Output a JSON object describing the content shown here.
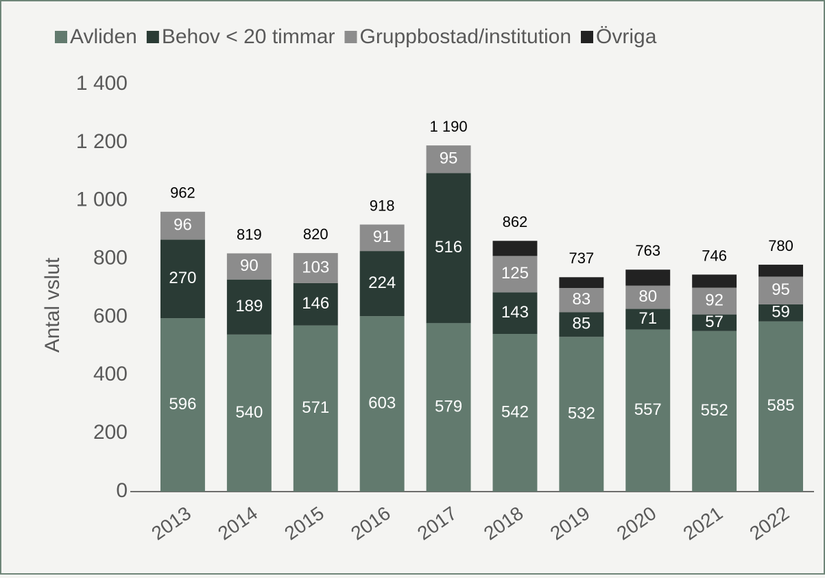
{
  "chart_data": {
    "type": "stacked_bar",
    "y_label": "Antal vslut",
    "categories": [
      "2013",
      "2014",
      "2015",
      "2016",
      "2017",
      "2018",
      "2019",
      "2020",
      "2021",
      "2022"
    ],
    "series": [
      {
        "name": "Avliden",
        "color": "#627a6e",
        "data_labels": true,
        "values": [
          596,
          540,
          571,
          603,
          579,
          542,
          532,
          557,
          552,
          585
        ]
      },
      {
        "name": "Behov < 20 timmar",
        "color": "#2a3b35",
        "data_labels": true,
        "values": [
          270,
          189,
          146,
          224,
          516,
          143,
          85,
          71,
          57,
          59
        ]
      },
      {
        "name": "Gruppbostad/institution",
        "color": "#8c8c8c",
        "data_labels": true,
        "values": [
          96,
          90,
          103,
          91,
          95,
          125,
          83,
          80,
          92,
          95
        ]
      },
      {
        "name": "Övriga",
        "color": "#222222",
        "data_labels": false,
        "values": [
          0,
          0,
          0,
          0,
          0,
          52,
          37,
          55,
          45,
          41
        ]
      }
    ],
    "totals": {
      "values": [
        962,
        819,
        820,
        918,
        1190,
        862,
        737,
        763,
        746,
        780
      ],
      "value_labels": [
        "962",
        "819",
        "820",
        "918",
        "1 190",
        "862",
        "737",
        "763",
        "746",
        "780"
      ]
    },
    "ylim": [
      0,
      1400
    ],
    "yticks": [
      0,
      200,
      400,
      600,
      800,
      {
        "value": 1000,
        "label": "1 000"
      },
      {
        "value": 1200,
        "label": "1 200"
      },
      {
        "value": 1400,
        "label": "1 400"
      }
    ],
    "grid": false,
    "legend": "top"
  }
}
